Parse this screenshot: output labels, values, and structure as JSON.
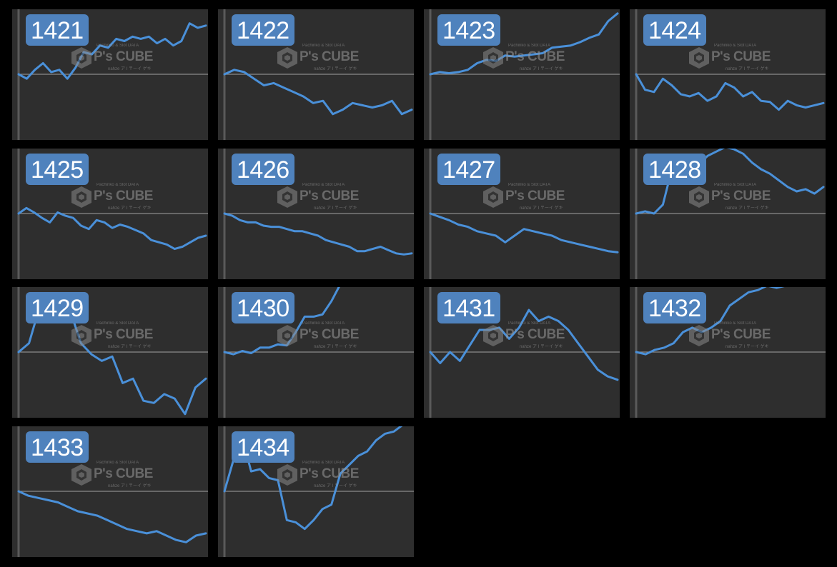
{
  "watermark": {
    "top": "Pachinko & Slot DATA",
    "main": "P's CUBE",
    "sub": "nahze ア I 〒ーイ ゲキ"
  },
  "colors": {
    "line": "#4a90d9",
    "panel": "#2e2e2e",
    "badge": "#4f82bd",
    "zero_line": "#8a8a8a",
    "left_axis": "#5a5a5a"
  },
  "chart_data": [
    {
      "type": "line",
      "title": "1421",
      "grid": false,
      "values": [
        0,
        -4,
        4,
        10,
        2,
        4,
        -4,
        6,
        20,
        18,
        26,
        24,
        32,
        30,
        34,
        32,
        34,
        28,
        32,
        26,
        30,
        46,
        42,
        44
      ]
    },
    {
      "type": "line",
      "title": "1422",
      "values": [
        0,
        4,
        2,
        -4,
        -10,
        -8,
        -12,
        -16,
        -20,
        -26,
        -24,
        -36,
        -32,
        -26,
        -28,
        -30,
        -28,
        -24,
        -36,
        -32
      ]
    },
    {
      "type": "line",
      "title": "1423",
      "values": [
        0,
        2,
        1,
        2,
        4,
        10,
        13,
        12,
        17,
        16,
        17,
        18,
        19,
        24,
        25,
        26,
        29,
        33,
        36,
        48,
        55
      ]
    },
    {
      "type": "line",
      "title": "1424",
      "values": [
        0,
        -14,
        -16,
        -4,
        -10,
        -18,
        -20,
        -17,
        -24,
        -20,
        -8,
        -12,
        -20,
        -16,
        -24,
        -25,
        -32,
        -24,
        -28,
        -30,
        -28,
        -26
      ]
    },
    {
      "type": "line",
      "title": "1425",
      "values": [
        0,
        5,
        1,
        -4,
        -8,
        1,
        -2,
        -4,
        -11,
        -14,
        -6,
        -8,
        -13,
        -10,
        -12,
        -15,
        -18,
        -24,
        -26,
        -28,
        -32,
        -30,
        -26,
        -22,
        -20
      ]
    },
    {
      "type": "line",
      "title": "1426",
      "values": [
        0,
        -2,
        -6,
        -8,
        -8,
        -11,
        -12,
        -12,
        -14,
        -16,
        -16,
        -18,
        -20,
        -24,
        -26,
        -28,
        -30,
        -34,
        -34,
        -32,
        -30,
        -33,
        -36,
        -37,
        -36
      ]
    },
    {
      "type": "line",
      "title": "1427",
      "values": [
        0,
        -3,
        -6,
        -10,
        -12,
        -16,
        -18,
        -20,
        -26,
        -20,
        -14,
        -16,
        -18,
        -20,
        -24,
        -26,
        -28,
        -30,
        -32,
        -34,
        -35
      ]
    },
    {
      "type": "line",
      "title": "1428",
      "values": [
        0,
        2,
        0,
        8,
        40,
        32,
        38,
        44,
        52,
        56,
        60,
        58,
        54,
        46,
        40,
        36,
        30,
        24,
        20,
        22,
        18,
        24
      ]
    },
    {
      "type": "line",
      "title": "1429",
      "values": [
        0,
        8,
        40,
        36,
        42,
        36,
        8,
        -2,
        -8,
        -4,
        -28,
        -24,
        -44,
        -46,
        -38,
        -42,
        -56,
        -32,
        -24
      ]
    },
    {
      "type": "line",
      "title": "1430",
      "values": [
        0,
        -2,
        1,
        -1,
        4,
        4,
        7,
        6,
        18,
        32,
        32,
        34,
        46,
        64,
        78,
        74,
        70,
        66,
        68,
        64,
        66,
        62
      ]
    },
    {
      "type": "line",
      "title": "1431",
      "values": [
        0,
        -10,
        0,
        -8,
        6,
        20,
        20,
        22,
        12,
        22,
        38,
        28,
        32,
        28,
        20,
        8,
        -4,
        -16,
        -22,
        -25
      ]
    },
    {
      "type": "line",
      "title": "1432",
      "values": [
        0,
        -2,
        2,
        4,
        8,
        18,
        22,
        18,
        22,
        28,
        42,
        48,
        54,
        56,
        60,
        58,
        60,
        62,
        64,
        62,
        60
      ]
    },
    {
      "type": "line",
      "title": "1433",
      "values": [
        0,
        -4,
        -6,
        -8,
        -10,
        -14,
        -18,
        -20,
        -22,
        -26,
        -30,
        -34,
        -36,
        -38,
        -36,
        -40,
        -44,
        -46,
        -40,
        -38
      ]
    },
    {
      "type": "line",
      "title": "1434",
      "values": [
        0,
        28,
        48,
        18,
        20,
        12,
        10,
        -26,
        -28,
        -34,
        -26,
        -16,
        -12,
        16,
        24,
        32,
        36,
        46,
        52,
        54,
        60,
        68
      ]
    }
  ]
}
